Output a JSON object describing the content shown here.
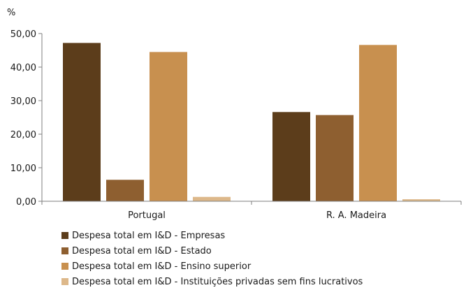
{
  "chart_data": {
    "type": "bar",
    "unit_label": "%",
    "categories": [
      "Portugal",
      "R. A. Madeira"
    ],
    "series": [
      {
        "name": "Despesa total em I&D - Empresas",
        "values": [
          47.2,
          26.6
        ],
        "color": "#5c3d1b"
      },
      {
        "name": "Despesa total em I&D - Estado",
        "values": [
          6.4,
          25.7
        ],
        "color": "#8e5f30"
      },
      {
        "name": "Despesa total em I&D - Ensino superior",
        "values": [
          44.5,
          46.6
        ],
        "color": "#c8904f"
      },
      {
        "name": "Despesa total em I&D - Instituições privadas sem fins lucrativos",
        "values": [
          1.3,
          0.6
        ],
        "color": "#ddb88a"
      }
    ],
    "ylim": [
      0,
      50
    ],
    "yticks": [
      "0,00",
      "10,00",
      "20,00",
      "30,00",
      "40,00",
      "50,00"
    ],
    "grid": false,
    "legend_position": "bottom-left"
  }
}
